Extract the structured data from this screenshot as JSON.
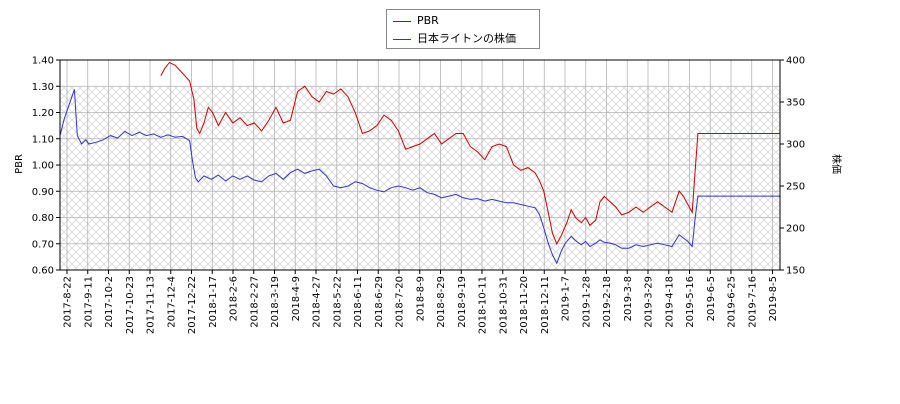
{
  "chart_data": {
    "type": "line",
    "legend": [
      {
        "name": "PBR",
        "color": "#cc0000"
      },
      {
        "name": "日本ライトンの株価",
        "color": "#3333cc"
      }
    ],
    "legend_position": "top-center",
    "ylabel_left": "PBR",
    "ylabel_right": "株価",
    "y_left_range": [
      0.6,
      1.4
    ],
    "y_left_ticks": [
      "0.60",
      "0.70",
      "0.80",
      "0.90",
      "1.00",
      "1.10",
      "1.20",
      "1.30",
      "1.40"
    ],
    "y_right_range": [
      150,
      400
    ],
    "y_right_ticks": [
      "150",
      "200",
      "250",
      "300",
      "350",
      "400"
    ],
    "grid": true,
    "x_ticks": [
      "2017-8-22",
      "2017-9-11",
      "2017-10-2",
      "2017-10-23",
      "2017-11-13",
      "2017-12-4",
      "2017-12-22",
      "2018-1-17",
      "2018-2-6",
      "2018-2-27",
      "2018-3-19",
      "2018-4-9",
      "2018-4-27",
      "2018-5-22",
      "2018-6-11",
      "2018-6-29",
      "2018-7-20",
      "2018-8-9",
      "2018-8-29",
      "2018-9-19",
      "2018-10-11",
      "2018-10-31",
      "2018-11-20",
      "2018-12-11",
      "2019-1-7",
      "2019-1-28",
      "2019-2-18",
      "2019-3-8",
      "2019-3-29",
      "2019-4-18",
      "2019-5-16",
      "2019-6-5",
      "2019-6-25",
      "2019-7-16",
      "2019-8-5"
    ],
    "series": [
      {
        "name": "PBR",
        "axis": "left",
        "color": "#cc0000",
        "points": [
          [
            7.0,
            1.34
          ],
          [
            7.3,
            1.37
          ],
          [
            7.6,
            1.39
          ],
          [
            8.0,
            1.38
          ],
          [
            8.5,
            1.35
          ],
          [
            9.0,
            1.32
          ],
          [
            9.3,
            1.25
          ],
          [
            9.5,
            1.14
          ],
          [
            9.7,
            1.12
          ],
          [
            10.0,
            1.16
          ],
          [
            10.3,
            1.22
          ],
          [
            10.6,
            1.2
          ],
          [
            11.0,
            1.15
          ],
          [
            11.5,
            1.2
          ],
          [
            12.0,
            1.16
          ],
          [
            12.5,
            1.18
          ],
          [
            13.0,
            1.15
          ],
          [
            13.5,
            1.16
          ],
          [
            14.0,
            1.13
          ],
          [
            14.5,
            1.17
          ],
          [
            15.0,
            1.22
          ],
          [
            15.5,
            1.16
          ],
          [
            16.0,
            1.17
          ],
          [
            16.5,
            1.28
          ],
          [
            17.0,
            1.3
          ],
          [
            17.5,
            1.26
          ],
          [
            18.0,
            1.24
          ],
          [
            18.5,
            1.28
          ],
          [
            19.0,
            1.27
          ],
          [
            19.5,
            1.29
          ],
          [
            20.0,
            1.26
          ],
          [
            20.5,
            1.2
          ],
          [
            21.0,
            1.12
          ],
          [
            21.5,
            1.13
          ],
          [
            22.0,
            1.15
          ],
          [
            22.5,
            1.19
          ],
          [
            23.0,
            1.17
          ],
          [
            23.5,
            1.13
          ],
          [
            24.0,
            1.06
          ],
          [
            24.5,
            1.07
          ],
          [
            25.0,
            1.08
          ],
          [
            25.5,
            1.1
          ],
          [
            26.0,
            1.12
          ],
          [
            26.5,
            1.08
          ],
          [
            27.0,
            1.1
          ],
          [
            27.5,
            1.12
          ],
          [
            28.0,
            1.12
          ],
          [
            28.5,
            1.07
          ],
          [
            29.0,
            1.05
          ],
          [
            29.5,
            1.02
          ],
          [
            30.0,
            1.07
          ],
          [
            30.5,
            1.08
          ],
          [
            31.0,
            1.07
          ],
          [
            31.5,
            1.0
          ],
          [
            32.0,
            0.98
          ],
          [
            32.5,
            0.99
          ],
          [
            33.0,
            0.97
          ],
          [
            33.3,
            0.94
          ],
          [
            33.6,
            0.9
          ],
          [
            33.9,
            0.82
          ],
          [
            34.2,
            0.74
          ],
          [
            34.5,
            0.7
          ],
          [
            34.8,
            0.73
          ],
          [
            35.2,
            0.78
          ],
          [
            35.5,
            0.83
          ],
          [
            35.8,
            0.8
          ],
          [
            36.2,
            0.78
          ],
          [
            36.5,
            0.8
          ],
          [
            36.8,
            0.77
          ],
          [
            37.2,
            0.79
          ],
          [
            37.5,
            0.86
          ],
          [
            37.8,
            0.88
          ],
          [
            38.2,
            0.86
          ],
          [
            38.6,
            0.84
          ],
          [
            39.0,
            0.81
          ],
          [
            39.5,
            0.82
          ],
          [
            40.0,
            0.84
          ],
          [
            40.5,
            0.82
          ],
          [
            41.0,
            0.84
          ],
          [
            41.5,
            0.86
          ],
          [
            42.0,
            0.84
          ],
          [
            42.5,
            0.82
          ],
          [
            43.0,
            0.9
          ],
          [
            43.3,
            0.88
          ],
          [
            43.6,
            0.85
          ],
          [
            43.9,
            0.82
          ],
          [
            44.1,
            0.97
          ],
          [
            44.3,
            1.12
          ],
          [
            45.0,
            1.12
          ],
          [
            46.0,
            1.12
          ],
          [
            47.0,
            1.12
          ],
          [
            48.0,
            1.12
          ],
          [
            49.0,
            1.12
          ],
          [
            50.0,
            1.12
          ]
        ]
      },
      {
        "name": "日本ライトンの株価",
        "axis": "right",
        "color": "#3333cc",
        "points": [
          [
            0.0,
            310
          ],
          [
            0.3,
            330
          ],
          [
            0.6,
            345
          ],
          [
            0.8,
            355
          ],
          [
            1.0,
            365
          ],
          [
            1.2,
            310
          ],
          [
            1.5,
            300
          ],
          [
            1.8,
            305
          ],
          [
            2.0,
            300
          ],
          [
            2.5,
            302
          ],
          [
            3.0,
            305
          ],
          [
            3.5,
            310
          ],
          [
            4.0,
            307
          ],
          [
            4.5,
            315
          ],
          [
            5.0,
            310
          ],
          [
            5.5,
            314
          ],
          [
            6.0,
            310
          ],
          [
            6.5,
            312
          ],
          [
            7.0,
            308
          ],
          [
            7.5,
            311
          ],
          [
            8.0,
            308
          ],
          [
            8.5,
            309
          ],
          [
            9.0,
            304
          ],
          [
            9.2,
            280
          ],
          [
            9.4,
            260
          ],
          [
            9.6,
            255
          ],
          [
            10.0,
            262
          ],
          [
            10.5,
            258
          ],
          [
            11.0,
            263
          ],
          [
            11.5,
            256
          ],
          [
            12.0,
            262
          ],
          [
            12.5,
            258
          ],
          [
            13.0,
            262
          ],
          [
            13.5,
            257
          ],
          [
            14.0,
            255
          ],
          [
            14.5,
            262
          ],
          [
            15.0,
            265
          ],
          [
            15.5,
            258
          ],
          [
            16.0,
            266
          ],
          [
            16.5,
            270
          ],
          [
            17.0,
            265
          ],
          [
            17.5,
            268
          ],
          [
            18.0,
            270
          ],
          [
            18.5,
            262
          ],
          [
            19.0,
            250
          ],
          [
            19.5,
            248
          ],
          [
            20.0,
            250
          ],
          [
            20.5,
            255
          ],
          [
            21.0,
            253
          ],
          [
            21.5,
            248
          ],
          [
            22.0,
            245
          ],
          [
            22.5,
            243
          ],
          [
            23.0,
            248
          ],
          [
            23.5,
            250
          ],
          [
            24.0,
            248
          ],
          [
            24.5,
            245
          ],
          [
            25.0,
            248
          ],
          [
            25.5,
            242
          ],
          [
            26.0,
            240
          ],
          [
            26.5,
            236
          ],
          [
            27.0,
            238
          ],
          [
            27.5,
            240
          ],
          [
            28.0,
            236
          ],
          [
            28.5,
            234
          ],
          [
            29.0,
            235
          ],
          [
            29.5,
            232
          ],
          [
            30.0,
            234
          ],
          [
            30.5,
            232
          ],
          [
            31.0,
            230
          ],
          [
            31.5,
            230
          ],
          [
            32.0,
            228
          ],
          [
            32.5,
            226
          ],
          [
            33.0,
            224
          ],
          [
            33.3,
            216
          ],
          [
            33.6,
            200
          ],
          [
            33.9,
            182
          ],
          [
            34.2,
            168
          ],
          [
            34.5,
            158
          ],
          [
            34.8,
            172
          ],
          [
            35.1,
            182
          ],
          [
            35.5,
            190
          ],
          [
            35.8,
            185
          ],
          [
            36.2,
            180
          ],
          [
            36.5,
            184
          ],
          [
            36.8,
            178
          ],
          [
            37.2,
            182
          ],
          [
            37.5,
            186
          ],
          [
            37.8,
            183
          ],
          [
            38.2,
            182
          ],
          [
            38.6,
            180
          ],
          [
            39.0,
            176
          ],
          [
            39.5,
            176
          ],
          [
            40.0,
            180
          ],
          [
            40.5,
            178
          ],
          [
            41.0,
            180
          ],
          [
            41.5,
            182
          ],
          [
            42.0,
            180
          ],
          [
            42.5,
            178
          ],
          [
            43.0,
            192
          ],
          [
            43.3,
            188
          ],
          [
            43.6,
            184
          ],
          [
            43.9,
            178
          ],
          [
            44.1,
            210
          ],
          [
            44.3,
            238
          ],
          [
            45.0,
            238
          ],
          [
            46.0,
            238
          ],
          [
            47.0,
            238
          ],
          [
            48.0,
            238
          ],
          [
            49.0,
            238
          ],
          [
            50.0,
            238
          ]
        ]
      }
    ]
  }
}
